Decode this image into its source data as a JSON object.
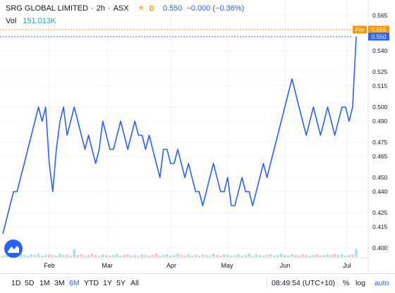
{
  "header": {
    "symbol_name": "SRG GLOBAL LIMITED",
    "interval": "2h",
    "exchange": "ASX",
    "mode_letter": "D",
    "last_price": "0.550",
    "change": "−0.000 (−0.36%)",
    "volume_label": "Vol",
    "volume_value": "151.013K"
  },
  "price_scale": {
    "ticks": [
      "0.565",
      "0.555",
      "0.550",
      "0.540",
      "0.525",
      "0.515",
      "0.500",
      "0.490",
      "0.475",
      "0.465",
      "0.450",
      "0.440",
      "0.425",
      "0.415",
      "0.400"
    ],
    "pre_label": "Pre",
    "pre_price": "0.555",
    "last_price": "0.550"
  },
  "time_scale": {
    "months": [
      "Feb",
      "Mar",
      "Apr",
      "May",
      "Jun",
      "Jul"
    ]
  },
  "bottom_bar": {
    "ranges": [
      "1D",
      "5D",
      "1M",
      "3M",
      "6M",
      "YTD",
      "1Y",
      "5Y",
      "All"
    ],
    "active_range": "6M",
    "clock": "08:49:54 (UTC+10)",
    "percent_label": "%",
    "log_label": "log",
    "auto_label": "auto"
  },
  "colors": {
    "line": "#2962ff",
    "pre_badge": "#ff9800",
    "price_badge": "#2962ff",
    "volume": "#26a69a",
    "volume_down": "#ef5350"
  },
  "chart_data": {
    "type": "line",
    "x_range": [
      "Jan",
      "Jul"
    ],
    "ylim": [
      0.395,
      0.57
    ],
    "y": [
      0.41,
      0.42,
      0.43,
      0.44,
      0.44,
      0.45,
      0.46,
      0.47,
      0.48,
      0.49,
      0.5,
      0.49,
      0.5,
      0.46,
      0.44,
      0.47,
      0.49,
      0.5,
      0.48,
      0.49,
      0.5,
      0.49,
      0.48,
      0.47,
      0.48,
      0.47,
      0.46,
      0.47,
      0.49,
      0.48,
      0.47,
      0.47,
      0.48,
      0.49,
      0.48,
      0.47,
      0.48,
      0.49,
      0.48,
      0.48,
      0.47,
      0.48,
      0.47,
      0.46,
      0.45,
      0.47,
      0.47,
      0.46,
      0.46,
      0.47,
      0.46,
      0.45,
      0.46,
      0.45,
      0.44,
      0.44,
      0.43,
      0.44,
      0.45,
      0.46,
      0.45,
      0.44,
      0.44,
      0.45,
      0.43,
      0.43,
      0.44,
      0.45,
      0.44,
      0.44,
      0.43,
      0.44,
      0.45,
      0.46,
      0.45,
      0.46,
      0.47,
      0.48,
      0.49,
      0.5,
      0.51,
      0.52,
      0.51,
      0.5,
      0.49,
      0.48,
      0.49,
      0.5,
      0.49,
      0.48,
      0.49,
      0.5,
      0.49,
      0.48,
      0.49,
      0.5,
      0.5,
      0.49,
      0.5,
      0.55
    ],
    "volume": [
      0.02,
      0.03,
      0.05,
      0.03,
      0.04,
      0.06,
      0.03,
      0.02,
      0.04,
      0.03,
      0.05,
      0.02,
      0.03,
      0.04,
      0.03,
      0.02,
      0.05,
      0.03,
      0.04,
      0.02,
      0.11,
      0.03,
      0.04,
      0.02,
      0.03,
      0.05,
      0.03,
      0.02,
      0.04,
      0.03,
      0.02,
      0.03,
      0.05,
      0.02,
      0.03,
      0.04,
      0.02,
      0.03,
      0.02,
      0.04,
      0.03,
      0.02,
      0.03,
      0.05,
      0.02,
      0.03,
      0.04,
      0.02,
      0.03,
      0.05,
      0.03,
      0.02,
      0.04,
      0.02,
      0.03,
      0.02,
      0.04,
      0.03,
      0.02,
      0.05,
      0.03,
      0.02,
      0.04,
      0.03,
      0.02,
      0.03,
      0.04,
      0.02,
      0.03,
      0.05,
      0.02,
      0.04,
      0.03,
      0.02,
      0.03,
      0.04,
      0.02,
      0.03,
      0.05,
      0.03,
      0.02,
      0.04,
      0.03,
      0.02,
      0.04,
      0.03,
      0.02,
      0.03,
      0.04,
      0.02,
      0.03,
      0.04,
      0.03,
      0.05,
      0.03,
      0.04,
      0.02,
      0.03,
      0.04,
      0.12
    ]
  }
}
